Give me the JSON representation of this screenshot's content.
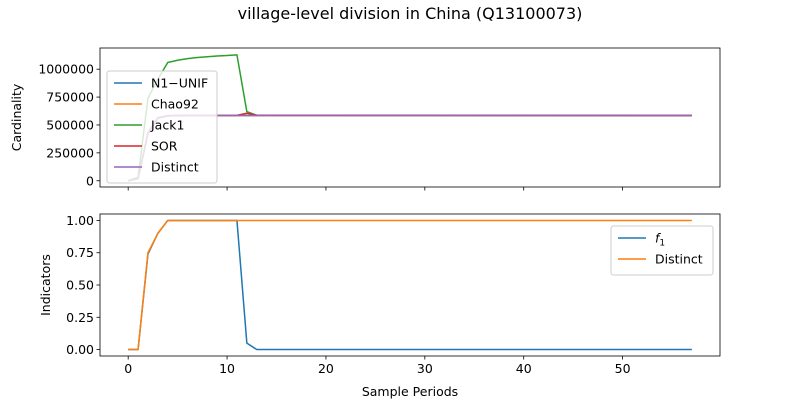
{
  "figure": {
    "title": "village-level division in China (Q13100073)",
    "xlabel": "Sample Periods"
  },
  "chart_data": [
    {
      "type": "line",
      "panel": "top",
      "ylabel": "Cardinality",
      "xlim": [
        -2.85,
        59.85
      ],
      "ylim": [
        -56000,
        1190000
      ],
      "xticks": [
        0,
        10,
        20,
        30,
        40,
        50
      ],
      "yticks": [
        0,
        250000,
        500000,
        750000,
        1000000
      ],
      "ytick_labels": [
        "0",
        "250000",
        "500000",
        "750000",
        "1000000"
      ],
      "x_tick_labels_visible": false,
      "legend": "upper-left",
      "series": [
        {
          "name": "N1−UNIF",
          "color": "#1f77b4",
          "x": [
            0,
            1,
            2,
            3,
            4,
            5,
            57
          ],
          "y": [
            0,
            20000,
            420000,
            560000,
            580000,
            585000,
            585000
          ]
        },
        {
          "name": "Chao92",
          "color": "#ff7f0e",
          "x": [
            0,
            1,
            2,
            3,
            4,
            5,
            57
          ],
          "y": [
            0,
            20000,
            430000,
            565000,
            583000,
            585000,
            585000
          ]
        },
        {
          "name": "Jack1",
          "color": "#2ca02c",
          "x": [
            0,
            1,
            2,
            3,
            4,
            5,
            6,
            7,
            8,
            9,
            10,
            11,
            12,
            13,
            57
          ],
          "y": [
            0,
            30000,
            740000,
            910000,
            1060000,
            1080000,
            1095000,
            1105000,
            1112000,
            1118000,
            1123000,
            1128000,
            620000,
            587000,
            585000
          ]
        },
        {
          "name": "SOR",
          "color": "#d62728",
          "x": [
            0,
            1,
            2,
            3,
            4,
            11,
            12,
            13,
            57
          ],
          "y": [
            0,
            20000,
            430000,
            565000,
            584000,
            586000,
            605000,
            588000,
            585000
          ]
        },
        {
          "name": "Distinct",
          "color": "#9467bd",
          "x": [
            0,
            1,
            2,
            3,
            4,
            5,
            57
          ],
          "y": [
            0,
            18000,
            425000,
            560000,
            582000,
            585000,
            585000
          ]
        }
      ]
    },
    {
      "type": "line",
      "panel": "bottom",
      "ylabel": "Indicators",
      "xlabel": "Sample Periods",
      "xlim": [
        -2.85,
        59.85
      ],
      "ylim": [
        -0.05,
        1.05
      ],
      "xticks": [
        0,
        10,
        20,
        30,
        40,
        50
      ],
      "yticks": [
        0.0,
        0.25,
        0.5,
        0.75,
        1.0
      ],
      "ytick_labels": [
        "0.00",
        "0.25",
        "0.50",
        "0.75",
        "1.00"
      ],
      "xtick_labels": [
        "0",
        "10",
        "20",
        "30",
        "40",
        "50"
      ],
      "legend": "upper-right",
      "series": [
        {
          "name": "f",
          "name_subscript": "1",
          "color": "#1f77b4",
          "x": [
            0,
            1,
            2,
            3,
            4,
            11,
            12,
            13,
            57
          ],
          "y": [
            0,
            0,
            0.74,
            0.9,
            1.0,
            1.0,
            0.05,
            0.0,
            0.0
          ]
        },
        {
          "name": "Distinct",
          "color": "#ff7f0e",
          "x": [
            0,
            1,
            2,
            3,
            4,
            57
          ],
          "y": [
            0,
            0,
            0.75,
            0.9,
            1.0,
            1.0
          ]
        }
      ]
    }
  ]
}
